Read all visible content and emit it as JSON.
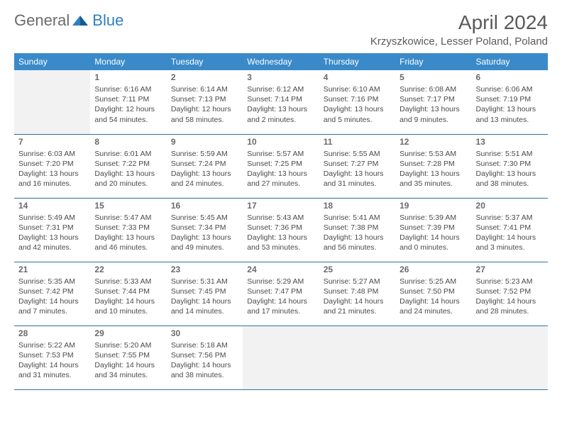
{
  "brand": {
    "part1": "General",
    "part2": "Blue"
  },
  "title": "April 2024",
  "location": "Krzyszkowice, Lesser Poland, Poland",
  "colors": {
    "header_bg": "#3a8ac9",
    "header_text": "#ffffff",
    "border": "#2f6fa8",
    "empty_bg": "#f2f2f2",
    "text": "#4a4a4a",
    "daynum": "#6a6a6a",
    "brand_gray": "#6b6b6b",
    "brand_blue": "#2f7fc2"
  },
  "daysOfWeek": [
    "Sunday",
    "Monday",
    "Tuesday",
    "Wednesday",
    "Thursday",
    "Friday",
    "Saturday"
  ],
  "firstWeekday": 1,
  "weeks": [
    [
      null,
      {
        "d": "1",
        "sr": "6:16 AM",
        "ss": "7:11 PM",
        "dl": "12 hours and 54 minutes."
      },
      {
        "d": "2",
        "sr": "6:14 AM",
        "ss": "7:13 PM",
        "dl": "12 hours and 58 minutes."
      },
      {
        "d": "3",
        "sr": "6:12 AM",
        "ss": "7:14 PM",
        "dl": "13 hours and 2 minutes."
      },
      {
        "d": "4",
        "sr": "6:10 AM",
        "ss": "7:16 PM",
        "dl": "13 hours and 5 minutes."
      },
      {
        "d": "5",
        "sr": "6:08 AM",
        "ss": "7:17 PM",
        "dl": "13 hours and 9 minutes."
      },
      {
        "d": "6",
        "sr": "6:06 AM",
        "ss": "7:19 PM",
        "dl": "13 hours and 13 minutes."
      }
    ],
    [
      {
        "d": "7",
        "sr": "6:03 AM",
        "ss": "7:20 PM",
        "dl": "13 hours and 16 minutes."
      },
      {
        "d": "8",
        "sr": "6:01 AM",
        "ss": "7:22 PM",
        "dl": "13 hours and 20 minutes."
      },
      {
        "d": "9",
        "sr": "5:59 AM",
        "ss": "7:24 PM",
        "dl": "13 hours and 24 minutes."
      },
      {
        "d": "10",
        "sr": "5:57 AM",
        "ss": "7:25 PM",
        "dl": "13 hours and 27 minutes."
      },
      {
        "d": "11",
        "sr": "5:55 AM",
        "ss": "7:27 PM",
        "dl": "13 hours and 31 minutes."
      },
      {
        "d": "12",
        "sr": "5:53 AM",
        "ss": "7:28 PM",
        "dl": "13 hours and 35 minutes."
      },
      {
        "d": "13",
        "sr": "5:51 AM",
        "ss": "7:30 PM",
        "dl": "13 hours and 38 minutes."
      }
    ],
    [
      {
        "d": "14",
        "sr": "5:49 AM",
        "ss": "7:31 PM",
        "dl": "13 hours and 42 minutes."
      },
      {
        "d": "15",
        "sr": "5:47 AM",
        "ss": "7:33 PM",
        "dl": "13 hours and 46 minutes."
      },
      {
        "d": "16",
        "sr": "5:45 AM",
        "ss": "7:34 PM",
        "dl": "13 hours and 49 minutes."
      },
      {
        "d": "17",
        "sr": "5:43 AM",
        "ss": "7:36 PM",
        "dl": "13 hours and 53 minutes."
      },
      {
        "d": "18",
        "sr": "5:41 AM",
        "ss": "7:38 PM",
        "dl": "13 hours and 56 minutes."
      },
      {
        "d": "19",
        "sr": "5:39 AM",
        "ss": "7:39 PM",
        "dl": "14 hours and 0 minutes."
      },
      {
        "d": "20",
        "sr": "5:37 AM",
        "ss": "7:41 PM",
        "dl": "14 hours and 3 minutes."
      }
    ],
    [
      {
        "d": "21",
        "sr": "5:35 AM",
        "ss": "7:42 PM",
        "dl": "14 hours and 7 minutes."
      },
      {
        "d": "22",
        "sr": "5:33 AM",
        "ss": "7:44 PM",
        "dl": "14 hours and 10 minutes."
      },
      {
        "d": "23",
        "sr": "5:31 AM",
        "ss": "7:45 PM",
        "dl": "14 hours and 14 minutes."
      },
      {
        "d": "24",
        "sr": "5:29 AM",
        "ss": "7:47 PM",
        "dl": "14 hours and 17 minutes."
      },
      {
        "d": "25",
        "sr": "5:27 AM",
        "ss": "7:48 PM",
        "dl": "14 hours and 21 minutes."
      },
      {
        "d": "26",
        "sr": "5:25 AM",
        "ss": "7:50 PM",
        "dl": "14 hours and 24 minutes."
      },
      {
        "d": "27",
        "sr": "5:23 AM",
        "ss": "7:52 PM",
        "dl": "14 hours and 28 minutes."
      }
    ],
    [
      {
        "d": "28",
        "sr": "5:22 AM",
        "ss": "7:53 PM",
        "dl": "14 hours and 31 minutes."
      },
      {
        "d": "29",
        "sr": "5:20 AM",
        "ss": "7:55 PM",
        "dl": "14 hours and 34 minutes."
      },
      {
        "d": "30",
        "sr": "5:18 AM",
        "ss": "7:56 PM",
        "dl": "14 hours and 38 minutes."
      },
      null,
      null,
      null,
      null
    ]
  ],
  "labels": {
    "sunrise": "Sunrise:",
    "sunset": "Sunset:",
    "daylight": "Daylight:"
  }
}
